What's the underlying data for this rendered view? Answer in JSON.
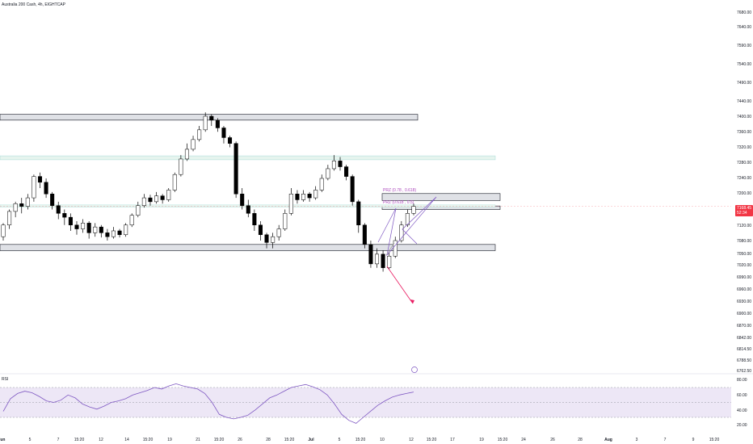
{
  "header": {
    "title": "Australia 200 Cash, 4h, EIGHTCAP"
  },
  "colors": {
    "up": "#ffffff",
    "down": "#000000",
    "wick": "#000000",
    "zone_fill": "#d1d4dc",
    "zone_border": "#131722",
    "zone_green": "#e6f4ee",
    "prz_text": "#ab47bc",
    "pattern_line": "#7e57c2",
    "target_line": "#e91e63",
    "rsi_line": "#7e57c2",
    "rsi_band": "#ede7f6",
    "last_price_bg": "#f23645",
    "price_line": "#f23645"
  },
  "chart_data": {
    "type": "candlestick",
    "symbol": "Australia 200 Cash",
    "timeframe": "4h",
    "source": "EIGHTCAP",
    "y_axis": {
      "ticks": [
        "7680.00",
        "7640.00",
        "7590.00",
        "7540.00",
        "7490.00",
        "7440.00",
        "7400.00",
        "7360.00",
        "7320.00",
        "7280.00",
        "7240.00",
        "7200.00",
        "7160.00",
        "7120.00",
        "7080.00",
        "7050.00",
        "7020.00",
        "6990.00",
        "6960.00",
        "6930.00",
        "6900.00",
        "6870.00",
        "6842.00",
        "6814.50",
        "6788.50",
        "6762.50"
      ]
    },
    "x_axis": {
      "ticks": [
        "Jun",
        "5",
        "7",
        "15:20",
        "12",
        "14",
        "15:20",
        "19",
        "21",
        "15:20",
        "26",
        "28",
        "15:20",
        "Jul",
        "5",
        "15:20",
        "10",
        "12",
        "15:20",
        "17",
        "19",
        "15:20",
        "24",
        "26",
        "28",
        "Aug",
        "3",
        "7",
        "9",
        "15:20"
      ]
    },
    "last_price": {
      "value": "7168.45",
      "sub": "52:34"
    },
    "zones": [
      {
        "label": "",
        "price_top": 7405,
        "price_bottom": 7390
      },
      {
        "label": "",
        "price_top": 7298,
        "price_bottom": 7288
      },
      {
        "label": "PRZ (0.78 , 0.618)",
        "price_top": 7201,
        "price_bottom": 7183
      },
      {
        "label": "PRZ (0.618 , 0.5)",
        "price_top": 7169,
        "price_bottom": 7160
      },
      {
        "label": "",
        "price_top": 7070,
        "price_bottom": 7054
      }
    ],
    "rsi": {
      "label": "RSI",
      "ticks": [
        "80.00",
        "60.00",
        "40.00",
        "20.00"
      ],
      "upper": 70,
      "lower": 30,
      "values": [
        38,
        55,
        62,
        65,
        63,
        58,
        52,
        50,
        53,
        60,
        56,
        48,
        44,
        41,
        45,
        50,
        52,
        55,
        60,
        63,
        66,
        70,
        68,
        72,
        75,
        72,
        70,
        68,
        62,
        50,
        34,
        30,
        28,
        30,
        33,
        40,
        48,
        56,
        60,
        65,
        70,
        72,
        74,
        71,
        67,
        60,
        48,
        34,
        26,
        22,
        30,
        38,
        46,
        52,
        57,
        60,
        62,
        64
      ]
    },
    "candles": [
      [
        7090,
        7120,
        7080,
        7125
      ],
      [
        7120,
        7155,
        7110,
        7160
      ],
      [
        7155,
        7175,
        7140,
        7180
      ],
      [
        7175,
        7168,
        7150,
        7190
      ],
      [
        7168,
        7190,
        7160,
        7200
      ],
      [
        7190,
        7245,
        7180,
        7250
      ],
      [
        7245,
        7230,
        7215,
        7255
      ],
      [
        7230,
        7200,
        7190,
        7240
      ],
      [
        7200,
        7170,
        7160,
        7205
      ],
      [
        7170,
        7150,
        7135,
        7180
      ],
      [
        7150,
        7140,
        7120,
        7160
      ],
      [
        7140,
        7120,
        7105,
        7150
      ],
      [
        7120,
        7110,
        7095,
        7130
      ],
      [
        7110,
        7125,
        7100,
        7135
      ],
      [
        7125,
        7100,
        7085,
        7130
      ],
      [
        7100,
        7115,
        7090,
        7125
      ],
      [
        7115,
        7100,
        7088,
        7120
      ],
      [
        7100,
        7090,
        7080,
        7110
      ],
      [
        7090,
        7105,
        7085,
        7115
      ],
      [
        7105,
        7095,
        7088,
        7110
      ],
      [
        7095,
        7120,
        7090,
        7125
      ],
      [
        7120,
        7145,
        7115,
        7150
      ],
      [
        7145,
        7170,
        7140,
        7180
      ],
      [
        7170,
        7190,
        7165,
        7200
      ],
      [
        7190,
        7180,
        7170,
        7198
      ],
      [
        7180,
        7195,
        7175,
        7205
      ],
      [
        7195,
        7185,
        7175,
        7200
      ],
      [
        7185,
        7210,
        7180,
        7215
      ],
      [
        7210,
        7250,
        7205,
        7255
      ],
      [
        7250,
        7290,
        7245,
        7300
      ],
      [
        7290,
        7315,
        7285,
        7330
      ],
      [
        7315,
        7340,
        7310,
        7350
      ],
      [
        7340,
        7365,
        7335,
        7375
      ],
      [
        7365,
        7400,
        7360,
        7410
      ],
      [
        7400,
        7390,
        7375,
        7405
      ],
      [
        7390,
        7370,
        7360,
        7395
      ],
      [
        7370,
        7345,
        7330,
        7375
      ],
      [
        7345,
        7330,
        7320,
        7350
      ],
      [
        7330,
        7200,
        7190,
        7335
      ],
      [
        7200,
        7170,
        7160,
        7215
      ],
      [
        7170,
        7150,
        7140,
        7185
      ],
      [
        7150,
        7120,
        7105,
        7160
      ],
      [
        7120,
        7095,
        7080,
        7130
      ],
      [
        7095,
        7075,
        7060,
        7100
      ],
      [
        7075,
        7090,
        7060,
        7100
      ],
      [
        7090,
        7110,
        7080,
        7120
      ],
      [
        7110,
        7150,
        7105,
        7160
      ],
      [
        7150,
        7200,
        7145,
        7215
      ],
      [
        7200,
        7185,
        7175,
        7210
      ],
      [
        7185,
        7200,
        7180,
        7210
      ],
      [
        7200,
        7190,
        7180,
        7205
      ],
      [
        7190,
        7210,
        7185,
        7220
      ],
      [
        7210,
        7240,
        7205,
        7250
      ],
      [
        7240,
        7265,
        7235,
        7275
      ],
      [
        7265,
        7285,
        7260,
        7300
      ],
      [
        7285,
        7270,
        7260,
        7295
      ],
      [
        7270,
        7245,
        7235,
        7275
      ],
      [
        7245,
        7180,
        7170,
        7250
      ],
      [
        7180,
        7120,
        7100,
        7185
      ],
      [
        7120,
        7070,
        7060,
        7125
      ],
      [
        7070,
        7020,
        7010,
        7080
      ],
      [
        7020,
        7045,
        7010,
        7060
      ],
      [
        7045,
        7010,
        7000,
        7055
      ],
      [
        7010,
        7040,
        7005,
        7050
      ],
      [
        7040,
        7080,
        7035,
        7090
      ],
      [
        7080,
        7120,
        7075,
        7130
      ],
      [
        7120,
        7150,
        7115,
        7160
      ],
      [
        7150,
        7168,
        7145,
        7175
      ]
    ]
  }
}
